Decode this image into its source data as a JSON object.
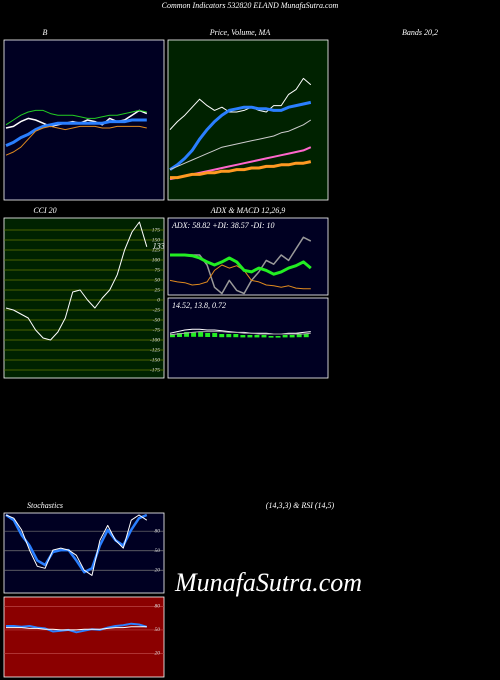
{
  "header": {
    "title": "Common Indicators 532820 ELAND MunafaSutra.com"
  },
  "watermark": "MunafaSutra.com",
  "chart_data": [
    {
      "type": "line",
      "title": "B",
      "subtitle": "Bands 20,2",
      "background": "#000022",
      "ylim": [
        0,
        100
      ],
      "series": [
        {
          "color": "#ffffff",
          "width": 1.5,
          "values": [
            45,
            46,
            49,
            51,
            50,
            48,
            46,
            47,
            48,
            49,
            48,
            50,
            49,
            47,
            51,
            49,
            50,
            53,
            56,
            54
          ]
        },
        {
          "color": "#22cc22",
          "width": 1,
          "values": [
            47,
            50,
            53,
            55,
            56,
            56,
            54,
            53,
            53,
            53,
            52,
            51,
            51,
            52,
            53,
            53,
            54,
            55,
            56,
            55
          ]
        },
        {
          "color": "#2a7fff",
          "width": 3,
          "values": [
            34,
            36,
            39,
            41,
            44,
            46,
            47,
            48,
            48,
            48,
            48,
            48,
            48,
            48,
            49,
            49,
            49,
            50,
            50,
            50
          ]
        },
        {
          "color": "#e08a1e",
          "width": 1,
          "values": [
            28,
            30,
            33,
            38,
            43,
            45,
            46,
            45,
            44,
            45,
            46,
            46,
            46,
            45,
            45,
            46,
            46,
            46,
            46,
            45
          ]
        }
      ]
    },
    {
      "type": "line",
      "title": "Price, Volume, MA",
      "background": "#002200",
      "ylim": [
        0,
        100
      ],
      "series": [
        {
          "color": "#ffffff",
          "width": 1,
          "values": [
            44,
            49,
            53,
            58,
            63,
            59,
            56,
            58,
            55,
            55,
            56,
            58,
            56,
            55,
            59,
            59,
            66,
            69,
            76,
            72
          ]
        },
        {
          "color": "#2a7fff",
          "width": 3,
          "values": [
            19,
            22,
            26,
            31,
            38,
            44,
            49,
            53,
            56,
            57,
            58,
            58,
            57,
            57,
            56,
            56,
            58,
            59,
            60,
            61
          ]
        },
        {
          "color": "#cccccc",
          "width": 1,
          "values": [
            19,
            21,
            23,
            25,
            27,
            29,
            31,
            33,
            34,
            35,
            36,
            37,
            38,
            39,
            40,
            42,
            43,
            45,
            47,
            50
          ]
        },
        {
          "color": "#ff66cc",
          "width": 2,
          "values": [
            13,
            14,
            15,
            16,
            17,
            18,
            19,
            20,
            21,
            22,
            23,
            24,
            25,
            26,
            27,
            28,
            29,
            30,
            31,
            33
          ]
        },
        {
          "color": "#ff9922",
          "width": 3,
          "values": [
            14,
            14,
            15,
            16,
            16,
            17,
            17,
            18,
            18,
            19,
            19,
            20,
            20,
            21,
            21,
            22,
            22,
            23,
            23,
            24
          ]
        }
      ]
    },
    {
      "type": "line",
      "title": "CCI 20",
      "background": "#002200",
      "grid": true,
      "grid_color": "#667700",
      "ylim": [
        -195,
        205
      ],
      "yticks": [
        175,
        150,
        125,
        100,
        75,
        50,
        25,
        0,
        -25,
        -50,
        -75,
        -100,
        -125,
        -150,
        -175
      ],
      "label_last": true,
      "series": [
        {
          "color": "#ffffff",
          "width": 1,
          "values": [
            -20,
            -25,
            -35,
            -45,
            -75,
            -95,
            -100,
            -80,
            -45,
            20,
            25,
            0,
            -20,
            5,
            25,
            63,
            125,
            170,
            195,
            133
          ]
        }
      ]
    },
    {
      "type": "line",
      "title": "ADX  & MACD 12,26,9",
      "annotation": "ADX: 58.82  +DI: 38.57 -DI: 10",
      "background": "#000022",
      "ylim": [
        0,
        100
      ],
      "series": [
        {
          "color": "#999999",
          "width": 1.5,
          "values": [
            52,
            52,
            52,
            52,
            52,
            39,
            10,
            2,
            19,
            6,
            2,
            19,
            30,
            45,
            40,
            52,
            45,
            60,
            75,
            70
          ]
        },
        {
          "color": "#e08a1e",
          "width": 1,
          "values": [
            19,
            17,
            16,
            13,
            14,
            17,
            32,
            39,
            35,
            38,
            32,
            19,
            17,
            13,
            12,
            10,
            12,
            9,
            8,
            8
          ]
        },
        {
          "color": "#22ee22",
          "width": 3,
          "values": [
            52,
            52,
            52,
            51,
            48,
            43,
            39,
            43,
            48,
            43,
            32,
            30,
            35,
            32,
            27,
            30,
            35,
            38,
            43,
            35
          ]
        }
      ]
    },
    {
      "type": "line",
      "annotation": "14.52, 13.8, 0.72",
      "background": "#000022",
      "ylim": [
        0,
        100
      ],
      "bars": {
        "color": "#22ee22",
        "values": [
          4,
          5,
          6,
          6,
          6,
          5,
          5,
          4,
          4,
          4,
          3,
          3,
          3,
          3,
          2,
          2,
          3,
          3,
          4,
          4
        ]
      },
      "series": [
        {
          "color": "#ffffff",
          "width": 1,
          "values": [
            56,
            58,
            60,
            61,
            61,
            60,
            60,
            59,
            58,
            57,
            57,
            56,
            56,
            56,
            55,
            55,
            56,
            56,
            57,
            58
          ]
        },
        {
          "color": "#aaaaaa",
          "width": 1,
          "values": [
            54,
            55,
            56,
            57,
            58,
            58,
            58,
            58,
            57,
            57,
            56,
            56,
            55,
            55,
            55,
            55,
            55,
            55,
            55,
            56
          ]
        }
      ]
    },
    {
      "type": "line",
      "title": "Stochastics",
      "subtitle": "(14,3,3) & RSI (14,5)",
      "background": "#000022",
      "grid": true,
      "grid_color": "#777777",
      "ylim": [
        -15,
        108
      ],
      "yticks": [
        80,
        50,
        20
      ],
      "series": [
        {
          "color": "#2a7fff",
          "width": 2.5,
          "values": [
            105,
            97,
            74,
            58,
            35,
            28,
            48,
            51,
            51,
            35,
            17,
            23,
            58,
            82,
            66,
            58,
            82,
            100,
            105
          ]
        },
        {
          "color": "#ffffff",
          "width": 1,
          "values": [
            105,
            100,
            82,
            51,
            26,
            23,
            51,
            54,
            51,
            43,
            20,
            12,
            66,
            89,
            66,
            54,
            97,
            105,
            97
          ]
        }
      ]
    },
    {
      "type": "line",
      "background": "#8b0000",
      "grid": true,
      "grid_color": "#bb4444",
      "ylim": [
        -10,
        92
      ],
      "yticks": [
        80,
        50,
        20
      ],
      "series": [
        {
          "color": "#2a7fff",
          "width": 2,
          "values": [
            55,
            55,
            54,
            55,
            53,
            52,
            48,
            49,
            50,
            47,
            49,
            51,
            50,
            53,
            55,
            56,
            58,
            57,
            54
          ]
        },
        {
          "color": "#ffffff",
          "width": 1,
          "values": [
            53,
            53,
            53,
            52,
            52,
            51,
            51,
            50,
            50,
            50,
            51,
            51,
            51,
            52,
            53,
            53,
            54,
            54,
            54
          ]
        }
      ]
    }
  ]
}
